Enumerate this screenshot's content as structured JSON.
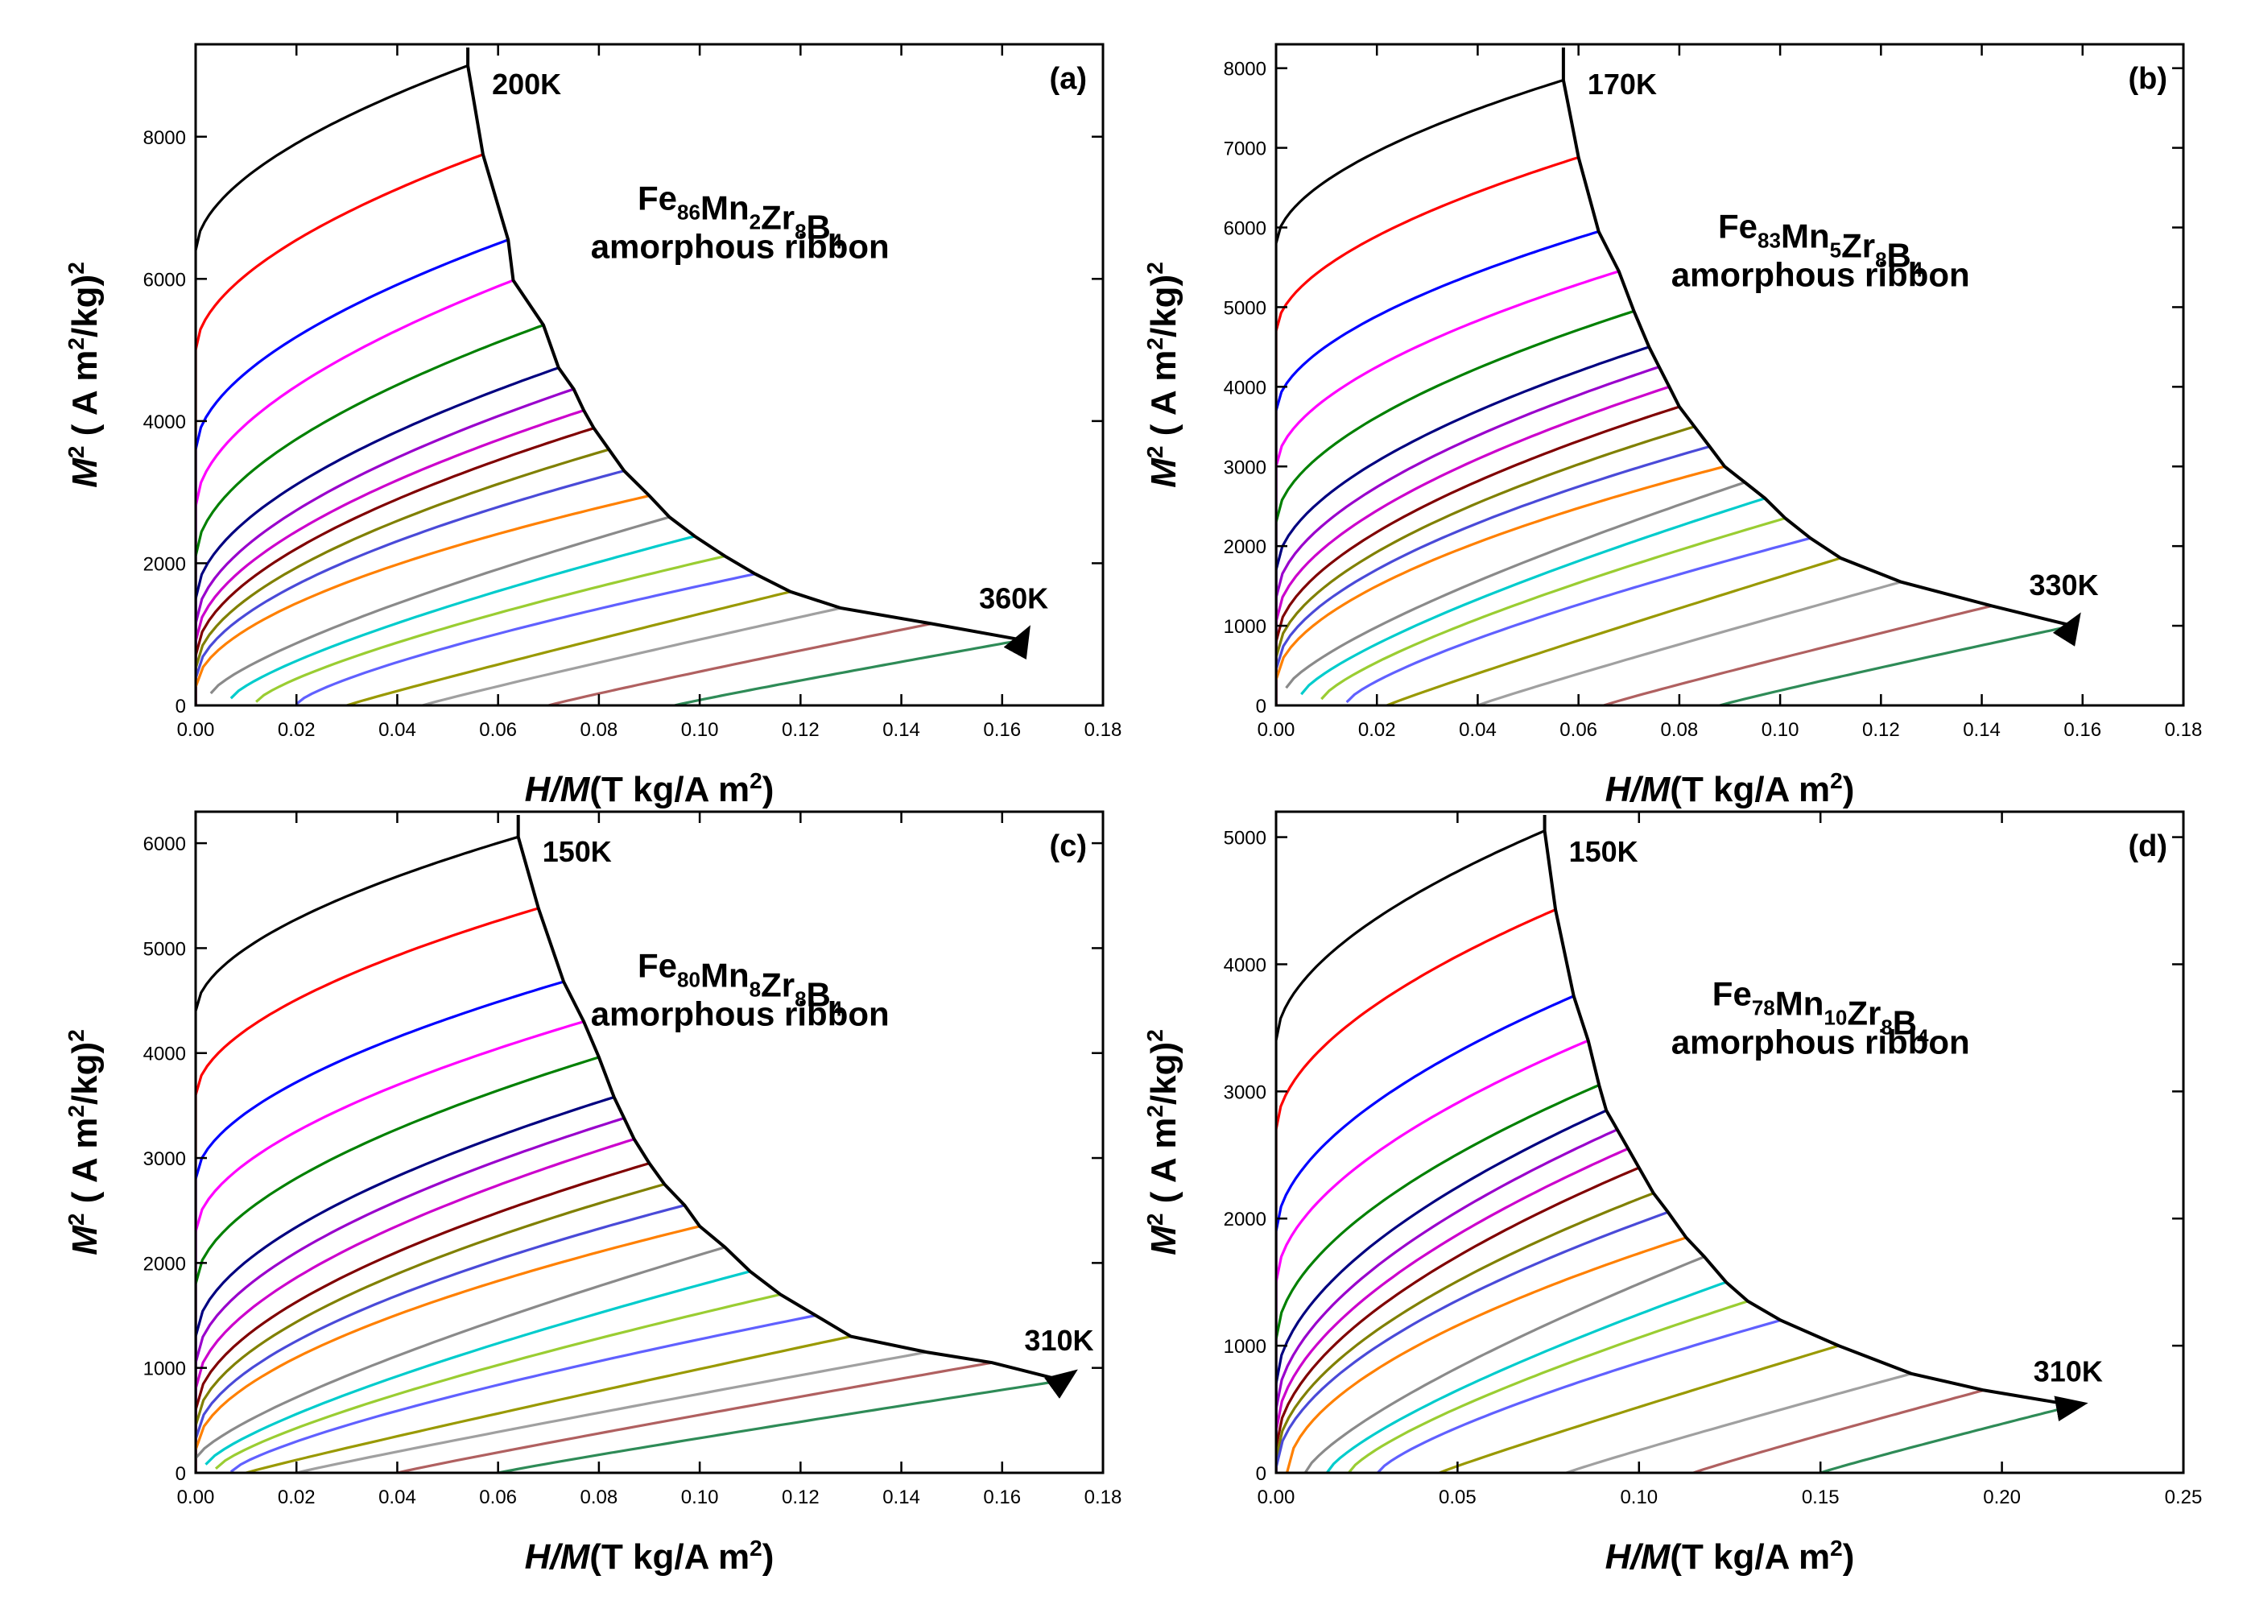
{
  "figure": {
    "curve_colors": [
      "#000000",
      "#ff0000",
      "#0000ff",
      "#ff00ff",
      "#008000",
      "#000080",
      "#9900cc",
      "#cc00cc",
      "#800000",
      "#808000",
      "#4a4ad8",
      "#ff8000",
      "#8a8a8a",
      "#00cccc",
      "#9acd32",
      "#6060ff",
      "#999900",
      "#a0a0a0",
      "#b06060",
      "#2e8b57"
    ]
  },
  "chart_data": [
    {
      "type": "line",
      "panel_label": "(a)",
      "composition": {
        "formula": [
          [
            "Fe",
            "86"
          ],
          [
            "Mn",
            "2"
          ],
          [
            "Zr",
            "8"
          ],
          [
            "B",
            "4"
          ]
        ],
        "text": "Fe86Mn2Zr8B4"
      },
      "sample": "amorphous ribbon",
      "xlabel": {
        "italic": "H/M",
        "unit": "(T kg/A m",
        "sup": "2",
        "close": ")"
      },
      "ylabel": {
        "italic": "M",
        "sup": "2",
        "rest": " ( A m",
        "sup2": "2",
        "rest2": "/kg)",
        "sup3": "2"
      },
      "xlim": [
        0,
        0.18
      ],
      "ylim": [
        0,
        9300
      ],
      "xticks": [
        "0.00",
        "0.02",
        "0.04",
        "0.06",
        "0.08",
        "0.10",
        "0.12",
        "0.14",
        "0.16",
        "0.18"
      ],
      "xtick_values": [
        0,
        0.02,
        0.04,
        0.06,
        0.08,
        0.1,
        0.12,
        0.14,
        0.16,
        0.18
      ],
      "yticks": [
        "0",
        "2000",
        "4000",
        "6000",
        "8000"
      ],
      "ytick_values": [
        0,
        2000,
        4000,
        6000,
        8000
      ],
      "temp_start": "200K",
      "temp_end": "360K",
      "series_endpoints": [
        [
          0.054,
          9000
        ],
        [
          0.057,
          7750
        ],
        [
          0.062,
          6550
        ],
        [
          0.063,
          5980
        ],
        [
          0.069,
          5350
        ],
        [
          0.072,
          4750
        ],
        [
          0.075,
          4450
        ],
        [
          0.077,
          4150
        ],
        [
          0.079,
          3900
        ],
        [
          0.082,
          3600
        ],
        [
          0.085,
          3300
        ],
        [
          0.09,
          2950
        ],
        [
          0.094,
          2650
        ],
        [
          0.099,
          2380
        ],
        [
          0.105,
          2100
        ],
        [
          0.111,
          1850
        ],
        [
          0.118,
          1600
        ],
        [
          0.128,
          1370
        ],
        [
          0.146,
          1150
        ],
        [
          0.164,
          920
        ]
      ],
      "series_y0": [
        6400,
        5000,
        3600,
        2800,
        2100,
        1500,
        1150,
        900,
        700,
        520,
        380,
        260,
        170,
        100,
        50,
        20,
        0,
        0,
        0,
        0
      ],
      "series_x0": [
        0,
        0,
        0,
        0,
        0,
        0,
        0,
        0,
        0,
        0,
        0,
        0,
        0.003,
        0.007,
        0.012,
        0.02,
        0.03,
        0.045,
        0.07,
        0.095
      ],
      "arrow_end": [
        0.165,
        1050
      ]
    },
    {
      "type": "line",
      "panel_label": "(b)",
      "composition": {
        "formula": [
          [
            "Fe",
            "83"
          ],
          [
            "Mn",
            "5"
          ],
          [
            "Zr",
            "8"
          ],
          [
            "B",
            "4"
          ]
        ],
        "text": "Fe83Mn5Zr8B4"
      },
      "sample": "amorphous ribbon",
      "xlabel": {
        "italic": "H/M",
        "unit": "(T kg/A m",
        "sup": "2",
        "close": ")"
      },
      "ylabel": {
        "italic": "M",
        "sup": "2",
        "rest": " ( A m",
        "sup2": "2",
        "rest2": "/kg)",
        "sup3": "2"
      },
      "xlim": [
        0,
        0.18
      ],
      "ylim": [
        0,
        8300
      ],
      "xticks": [
        "0.00",
        "0.02",
        "0.04",
        "0.06",
        "0.08",
        "0.10",
        "0.12",
        "0.14",
        "0.16",
        "0.18"
      ],
      "xtick_values": [
        0,
        0.02,
        0.04,
        0.06,
        0.08,
        0.1,
        0.12,
        0.14,
        0.16,
        0.18
      ],
      "yticks": [
        "0",
        "1000",
        "2000",
        "3000",
        "4000",
        "5000",
        "6000",
        "7000",
        "8000"
      ],
      "ytick_values": [
        0,
        1000,
        2000,
        3000,
        4000,
        5000,
        6000,
        7000,
        8000
      ],
      "temp_start": "170K",
      "temp_end": "330K",
      "series_endpoints": [
        [
          0.057,
          7850
        ],
        [
          0.06,
          6880
        ],
        [
          0.064,
          5950
        ],
        [
          0.068,
          5450
        ],
        [
          0.071,
          4950
        ],
        [
          0.074,
          4500
        ],
        [
          0.076,
          4250
        ],
        [
          0.078,
          4000
        ],
        [
          0.08,
          3750
        ],
        [
          0.083,
          3500
        ],
        [
          0.086,
          3250
        ],
        [
          0.089,
          3000
        ],
        [
          0.093,
          2800
        ],
        [
          0.097,
          2600
        ],
        [
          0.101,
          2350
        ],
        [
          0.106,
          2100
        ],
        [
          0.112,
          1850
        ],
        [
          0.124,
          1550
        ],
        [
          0.142,
          1250
        ],
        [
          0.158,
          1000
        ]
      ],
      "series_y0": [
        5800,
        4700,
        3700,
        3000,
        2300,
        1700,
        1350,
        1050,
        800,
        600,
        450,
        320,
        220,
        140,
        80,
        40,
        0,
        0,
        0,
        0
      ],
      "series_x0": [
        0,
        0,
        0,
        0,
        0,
        0,
        0,
        0,
        0,
        0,
        0,
        0,
        0.002,
        0.005,
        0.009,
        0.014,
        0.022,
        0.04,
        0.065,
        0.088
      ],
      "arrow_end": [
        0.159,
        1100
      ]
    },
    {
      "type": "line",
      "panel_label": "(c)",
      "composition": {
        "formula": [
          [
            "Fe",
            "80"
          ],
          [
            "Mn",
            "8"
          ],
          [
            "Zr",
            "8"
          ],
          [
            "B",
            "4"
          ]
        ],
        "text": "Fe80Mn8Zr8B4"
      },
      "sample": "amorphous ribbon",
      "xlabel": {
        "italic": "H/M",
        "unit": "(T kg/A m",
        "sup": "2",
        "close": ")"
      },
      "ylabel": {
        "italic": "M",
        "sup": "2",
        "rest": " ( A m",
        "sup2": "2",
        "rest2": "/kg)",
        "sup3": "2"
      },
      "xlim": [
        0,
        0.18
      ],
      "ylim": [
        0,
        6300
      ],
      "xticks": [
        "0.00",
        "0.02",
        "0.04",
        "0.06",
        "0.08",
        "0.10",
        "0.12",
        "0.14",
        "0.16",
        "0.18"
      ],
      "xtick_values": [
        0,
        0.02,
        0.04,
        0.06,
        0.08,
        0.1,
        0.12,
        0.14,
        0.16,
        0.18
      ],
      "yticks": [
        "0",
        "1000",
        "2000",
        "3000",
        "4000",
        "5000",
        "6000"
      ],
      "ytick_values": [
        0,
        1000,
        2000,
        3000,
        4000,
        5000,
        6000
      ],
      "temp_start": "150K",
      "temp_end": "310K",
      "series_endpoints": [
        [
          0.064,
          6060
        ],
        [
          0.068,
          5380
        ],
        [
          0.073,
          4680
        ],
        [
          0.077,
          4300
        ],
        [
          0.08,
          3960
        ],
        [
          0.083,
          3580
        ],
        [
          0.085,
          3380
        ],
        [
          0.087,
          3180
        ],
        [
          0.09,
          2950
        ],
        [
          0.093,
          2750
        ],
        [
          0.097,
          2550
        ],
        [
          0.1,
          2350
        ],
        [
          0.105,
          2150
        ],
        [
          0.11,
          1920
        ],
        [
          0.116,
          1700
        ],
        [
          0.123,
          1500
        ],
        [
          0.13,
          1300
        ],
        [
          0.145,
          1150
        ],
        [
          0.158,
          1050
        ],
        [
          0.172,
          880
        ]
      ],
      "series_y0": [
        4400,
        3600,
        2800,
        2300,
        1800,
        1300,
        1050,
        800,
        600,
        450,
        320,
        220,
        140,
        80,
        40,
        10,
        0,
        0,
        0,
        0
      ],
      "series_x0": [
        0,
        0,
        0,
        0,
        0,
        0,
        0,
        0,
        0,
        0,
        0,
        0,
        0,
        0.002,
        0.004,
        0.007,
        0.01,
        0.02,
        0.04,
        0.06
      ],
      "arrow_end": [
        0.174,
        950
      ]
    },
    {
      "type": "line",
      "panel_label": "(d)",
      "composition": {
        "formula": [
          [
            "Fe",
            "78"
          ],
          [
            "Mn",
            "10"
          ],
          [
            "Zr",
            "8"
          ],
          [
            "B",
            "4"
          ]
        ],
        "text": "Fe78Mn10Zr8B4"
      },
      "sample": "amorphous ribbon",
      "xlabel": {
        "italic": "H/M",
        "unit": "(T kg/A m",
        "sup": "2",
        "close": ")"
      },
      "ylabel": {
        "italic": "M",
        "sup": "2",
        "rest": " ( A m",
        "sup2": "2",
        "rest2": "/kg)",
        "sup3": "2"
      },
      "xlim": [
        0,
        0.25
      ],
      "ylim": [
        0,
        5200
      ],
      "xticks": [
        "0.00",
        "0.05",
        "0.10",
        "0.15",
        "0.20",
        "0.25"
      ],
      "xtick_values": [
        0,
        0.05,
        0.1,
        0.15,
        0.2,
        0.25
      ],
      "yticks": [
        "0",
        "1000",
        "2000",
        "3000",
        "4000",
        "5000"
      ],
      "ytick_values": [
        0,
        1000,
        2000,
        3000,
        4000,
        5000
      ],
      "temp_start": "150K",
      "temp_end": "310K",
      "series_endpoints": [
        [
          0.074,
          5050
        ],
        [
          0.077,
          4430
        ],
        [
          0.082,
          3750
        ],
        [
          0.086,
          3400
        ],
        [
          0.089,
          3050
        ],
        [
          0.091,
          2850
        ],
        [
          0.094,
          2700
        ],
        [
          0.097,
          2550
        ],
        [
          0.1,
          2400
        ],
        [
          0.104,
          2200
        ],
        [
          0.108,
          2050
        ],
        [
          0.113,
          1850
        ],
        [
          0.118,
          1700
        ],
        [
          0.124,
          1500
        ],
        [
          0.13,
          1350
        ],
        [
          0.139,
          1200
        ],
        [
          0.155,
          1000
        ],
        [
          0.175,
          780
        ],
        [
          0.195,
          650
        ],
        [
          0.22,
          530
        ]
      ],
      "series_y0": [
        3400,
        2700,
        1900,
        1500,
        1050,
        700,
        500,
        330,
        200,
        110,
        40,
        0,
        0,
        0,
        0,
        0,
        0,
        0,
        0,
        0
      ],
      "series_x0": [
        0,
        0,
        0,
        0,
        0,
        0,
        0,
        0,
        0,
        0,
        0,
        0.003,
        0.008,
        0.014,
        0.02,
        0.028,
        0.045,
        0.08,
        0.115,
        0.15
      ],
      "arrow_end": [
        0.222,
        540
      ]
    }
  ]
}
